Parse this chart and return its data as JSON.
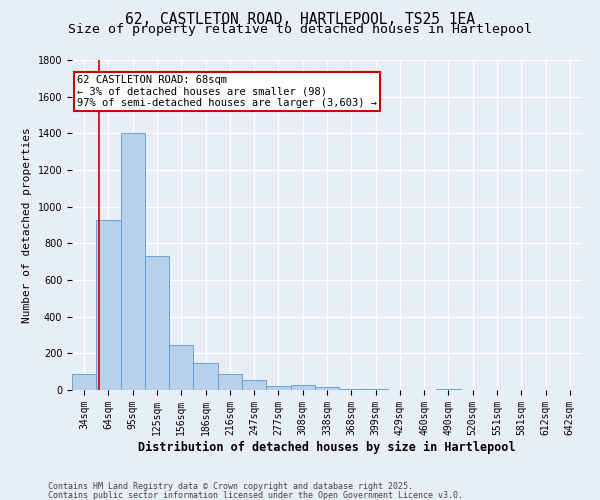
{
  "title": "62, CASTLETON ROAD, HARTLEPOOL, TS25 1EA",
  "subtitle": "Size of property relative to detached houses in Hartlepool",
  "xlabel": "Distribution of detached houses by size in Hartlepool",
  "ylabel": "Number of detached properties",
  "categories": [
    "34sqm",
    "64sqm",
    "95sqm",
    "125sqm",
    "156sqm",
    "186sqm",
    "216sqm",
    "247sqm",
    "277sqm",
    "308sqm",
    "338sqm",
    "368sqm",
    "399sqm",
    "429sqm",
    "460sqm",
    "490sqm",
    "520sqm",
    "551sqm",
    "581sqm",
    "612sqm",
    "642sqm"
  ],
  "values": [
    90,
    930,
    1400,
    730,
    248,
    150,
    90,
    55,
    20,
    25,
    15,
    8,
    5,
    0,
    0,
    8,
    0,
    0,
    0,
    0,
    0
  ],
  "bar_color": "#b8d0ea",
  "bar_edge_color": "#5b9bd5",
  "annotation_text_lines": [
    "62 CASTLETON ROAD: 68sqm",
    "← 3% of detached houses are smaller (98)",
    "97% of semi-detached houses are larger (3,603) →"
  ],
  "annotation_box_color": "#ffffff",
  "annotation_box_edge_color": "#cc0000",
  "footnote1": "Contains HM Land Registry data © Crown copyright and database right 2025.",
  "footnote2": "Contains public sector information licensed under the Open Government Licence v3.0.",
  "ylim": [
    0,
    1800
  ],
  "background_color": "#e8eef8",
  "grid_color": "#ffffff",
  "title_fontsize": 10.5,
  "subtitle_fontsize": 9.5,
  "xlabel_fontsize": 8.5,
  "ylabel_fontsize": 8,
  "tick_fontsize": 7,
  "annotation_fontsize": 7.5,
  "footnote_fontsize": 6
}
